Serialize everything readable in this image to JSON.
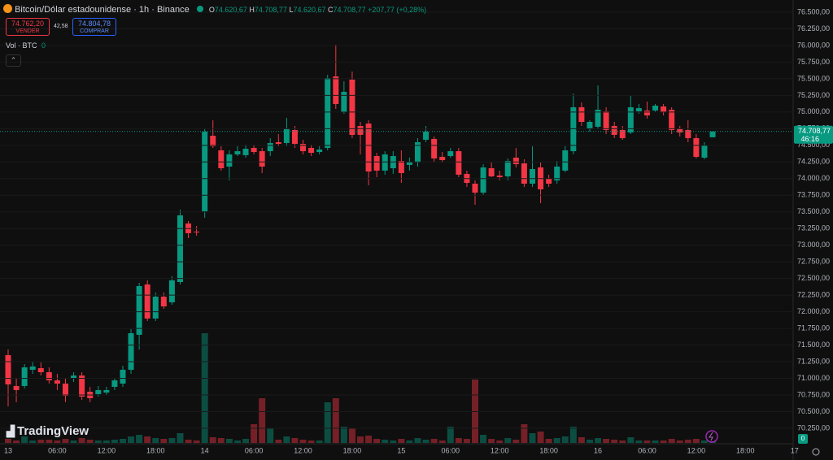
{
  "header": {
    "title": "Bitcoin/Dólar estadounidense · 1h · Binance",
    "ohlc": [
      {
        "key": "O",
        "value": "74.620,67"
      },
      {
        "key": "H",
        "value": "74.708,77"
      },
      {
        "key": "L",
        "value": "74.620,67"
      },
      {
        "key": "C",
        "value": "74.708,77"
      }
    ],
    "change": "+207,77 (+0,28%)",
    "sell": {
      "price": "74.762,20",
      "label": "VENDER"
    },
    "spread": "42,58",
    "buy": {
      "price": "74.804,78",
      "label": "COMPRAR"
    },
    "volume_label": "Vol · BTC",
    "volume_value": "0",
    "brand": "TradingView",
    "badge": "0"
  },
  "chart_data": {
    "type": "candlestick",
    "categories": [
      "13",
      null,
      null,
      null,
      null,
      null,
      "06:00",
      null,
      null,
      null,
      null,
      null,
      "12:00",
      null,
      null,
      null,
      null,
      null,
      "18:00",
      null,
      null,
      null,
      null,
      null,
      "14",
      null,
      null,
      null,
      null,
      null,
      "06:00",
      null,
      null,
      null,
      null,
      null,
      "12:00",
      null,
      null,
      null,
      null,
      null,
      "18:00",
      null,
      null,
      null,
      null,
      null,
      "15",
      null,
      null,
      null,
      null,
      null,
      "06:00",
      null,
      null,
      null,
      null,
      null,
      "12:00",
      null,
      null,
      null,
      null,
      null,
      "18:00",
      null,
      null,
      null,
      null,
      null,
      "16",
      null,
      null,
      null,
      null,
      null,
      "06:00",
      null,
      null,
      null,
      null,
      null,
      "12:00",
      null,
      null,
      null,
      null,
      null,
      "18:00",
      null,
      null,
      null,
      null,
      null,
      "17"
    ],
    "open": [
      71349,
      70885,
      70885,
      71129,
      71153,
      71092,
      70970,
      70921,
      70995,
      71043,
      70799,
      70763,
      70787,
      70872,
      70921,
      71129,
      71654,
      72410,
      71898,
      72227,
      72142,
      72447,
      73326,
      73204,
      73509,
      74644,
      74425,
      74181,
      74364,
      74352,
      74461,
      74412,
      74412,
      74547,
      74535,
      74730,
      74522,
      74461,
      74400,
      74461,
      75535,
      74998,
      75487,
      74791,
      74827,
      74339,
      74120,
      74156,
      74266,
      74205,
      74242,
      74583,
      74596,
      74327,
      74339,
      74412,
      74071,
      73924,
      73790,
      74156,
      74046,
      74034,
      74315,
      74229,
      73924,
      74168,
      73997,
      73973,
      74120,
      74412,
      75072,
      74754,
      74779,
      75011,
      74791,
      74730,
      74693,
      75011,
      75023,
      75023,
      75084,
      75035,
      74754,
      74730,
      74608,
      74315,
      74620.67,
      null,
      null,
      null,
      null,
      null,
      null,
      null,
      null,
      null,
      null
    ],
    "high": [
      71434,
      71007,
      71214,
      71251,
      71239,
      71165,
      71068,
      71007,
      71092,
      71092,
      70872,
      70885,
      70872,
      71007,
      71190,
      71739,
      72435,
      72472,
      72289,
      72289,
      72533,
      73534,
      73363,
      73289,
      74754,
      74876,
      74486,
      74425,
      74486,
      74510,
      74510,
      74461,
      74608,
      74669,
      74913,
      74791,
      74583,
      74510,
      74486,
      75560,
      76012,
      75462,
      75609,
      74852,
      74876,
      74388,
      74412,
      74412,
      74425,
      74315,
      74608,
      74791,
      74632,
      74400,
      74461,
      74461,
      74120,
      73973,
      74217,
      74242,
      74120,
      74303,
      74461,
      74290,
      74486,
      74242,
      74059,
      74266,
      74486,
      75279,
      75145,
      74876,
      75401,
      75072,
      74852,
      74791,
      75243,
      75121,
      75157,
      75121,
      75121,
      75072,
      74791,
      74876,
      74669,
      74547,
      74708.77,
      null,
      null,
      null,
      null,
      null,
      null,
      null,
      null,
      null,
      null
    ],
    "low": [
      70580,
      70641,
      70848,
      71068,
      71043,
      70921,
      70824,
      70641,
      70946,
      70677,
      70641,
      70726,
      70750,
      70824,
      70872,
      71068,
      71434,
      71861,
      71861,
      72044,
      72105,
      72410,
      73106,
      73143,
      73412,
      74461,
      74120,
      73973,
      74339,
      74315,
      74364,
      74083,
      74339,
      74486,
      74486,
      74461,
      74364,
      74339,
      74364,
      74425,
      75047,
      74974,
      74608,
      74364,
      73900,
      74022,
      74059,
      74071,
      73936,
      74120,
      74181,
      74547,
      74242,
      74242,
      74315,
      74022,
      73875,
      73607,
      73754,
      74022,
      73973,
      73973,
      74168,
      73875,
      73875,
      73631,
      73875,
      73924,
      74095,
      74364,
      74791,
      74705,
      74754,
      74669,
      74608,
      74583,
      74669,
      74974,
      74901,
      74998,
      74950,
      74669,
      74632,
      74547,
      74303,
      74290,
      74620.67,
      null,
      null,
      null,
      null,
      null,
      null,
      null,
      null,
      null,
      null
    ],
    "close": [
      70909,
      70824,
      71165,
      71178,
      71092,
      70970,
      70921,
      70738,
      71043,
      70726,
      70702,
      70824,
      70824,
      70970,
      71129,
      71678,
      72386,
      71898,
      72227,
      72081,
      72472,
      73448,
      73180,
      73192,
      74705,
      74486,
      74156,
      74364,
      74412,
      74449,
      74400,
      74181,
      74535,
      74522,
      74754,
      74522,
      74412,
      74388,
      74437,
      75511,
      75120,
      75304,
      74657,
      74657,
      74107,
      74120,
      74364,
      74339,
      74083,
      74254,
      74547,
      74705,
      74303,
      74278,
      74412,
      74059,
      73936,
      73790,
      74168,
      74034,
      74022,
      74266,
      74217,
      73924,
      74144,
      73839,
      73924,
      74181,
      74425,
      75072,
      74852,
      74852,
      75035,
      74730,
      74657,
      74608,
      75072,
      75059,
      74950,
      75096,
      74998,
      74730,
      74693,
      74608,
      74327,
      74498,
      74708.77,
      null,
      null,
      null,
      null,
      null,
      null,
      null,
      null,
      null,
      null
    ],
    "volume": [
      5,
      3,
      8,
      3,
      4,
      4,
      3,
      5,
      3,
      6,
      4,
      3,
      3,
      4,
      5,
      8,
      10,
      8,
      6,
      5,
      6,
      12,
      4,
      3,
      135,
      7,
      6,
      5,
      3,
      5,
      23,
      55,
      18,
      4,
      8,
      6,
      4,
      3,
      3,
      50,
      55,
      20,
      18,
      8,
      9,
      5,
      4,
      3,
      5,
      3,
      6,
      4,
      5,
      3,
      20,
      6,
      5,
      78,
      10,
      5,
      3,
      6,
      4,
      23,
      12,
      14,
      5,
      6,
      8,
      20,
      7,
      4,
      6,
      5,
      4,
      3,
      7,
      3,
      3,
      3,
      3,
      5,
      3,
      4,
      5,
      3,
      2,
      null,
      null,
      null,
      null,
      null,
      null,
      null,
      null,
      null,
      null
    ],
    "up_color": "#089981",
    "down_color": "#f23645",
    "last_price": {
      "value": 74708.77,
      "label": "74.708,77"
    },
    "countdown": "46:16",
    "ylim": [
      70030,
      76683
    ],
    "yticks": [
      {
        "value": 76500,
        "label": "76.500,00"
      },
      {
        "value": 76250,
        "label": "76.250,00"
      },
      {
        "value": 76000,
        "label": "76.000,00"
      },
      {
        "value": 75750,
        "label": "75.750,00"
      },
      {
        "value": 75500,
        "label": "75.500,00"
      },
      {
        "value": 75250,
        "label": "75.250,00"
      },
      {
        "value": 75000,
        "label": "75.000,00"
      },
      {
        "value": 74750,
        "label": "74.750,00"
      },
      {
        "value": 74500,
        "label": "74.500,00"
      },
      {
        "value": 74250,
        "label": "74.250,00"
      },
      {
        "value": 74000,
        "label": "74.000,00"
      },
      {
        "value": 73750,
        "label": "73.750,00"
      },
      {
        "value": 73500,
        "label": "73.500,00"
      },
      {
        "value": 73250,
        "label": "73.250,00"
      },
      {
        "value": 73000,
        "label": "73.000,00"
      },
      {
        "value": 72750,
        "label": "72.750,00"
      },
      {
        "value": 72500,
        "label": "72.500,00"
      },
      {
        "value": 72250,
        "label": "72.250,00"
      },
      {
        "value": 72000,
        "label": "72.000,00"
      },
      {
        "value": 71750,
        "label": "71.750,00"
      },
      {
        "value": 71500,
        "label": "71.500,00"
      },
      {
        "value": 71250,
        "label": "71.250,00"
      },
      {
        "value": 71000,
        "label": "71.000,00"
      },
      {
        "value": 70750,
        "label": "70.750,00"
      },
      {
        "value": 70500,
        "label": "70.500,00"
      },
      {
        "value": 70250,
        "label": "70.250,00"
      }
    ],
    "grid": true
  }
}
